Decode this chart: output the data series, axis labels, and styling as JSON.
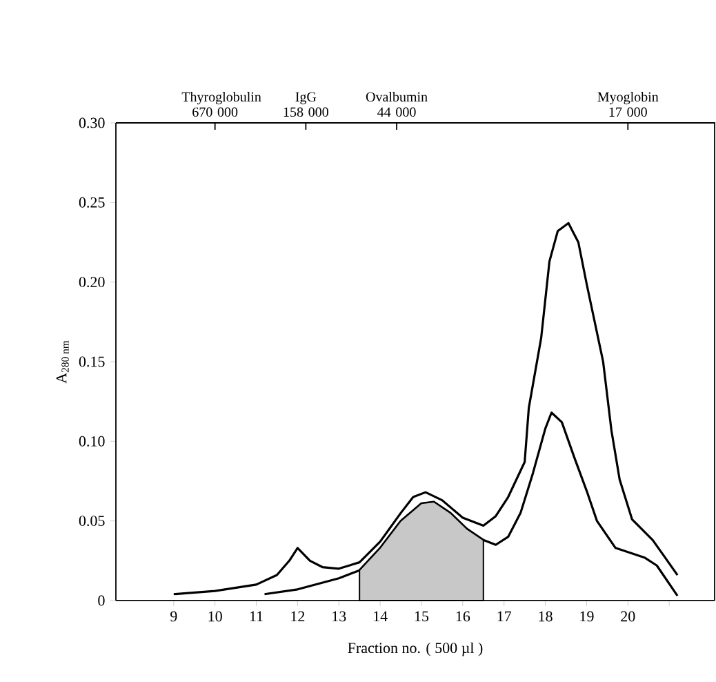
{
  "chart_data": {
    "type": "line",
    "xlabel": "Fraction no. ( 500 µl )",
    "ylabel": "A$_{280 nm}$",
    "xlim": [
      7.6,
      22.1
    ],
    "ylim": [
      0,
      0.3
    ],
    "xticks": [
      9,
      10,
      11,
      12,
      13,
      14,
      15,
      16,
      17,
      18,
      19,
      20,
      {
        "value": 21,
        "label": null
      }
    ],
    "yticks": [
      0,
      0.05,
      {
        "value": 0.1,
        "label": "0.10"
      },
      0.15,
      {
        "value": 0.2,
        "label": "0.20"
      },
      0.25,
      {
        "value": 0.3,
        "label": "0.30"
      }
    ],
    "annotations": [
      {
        "text": "Thyroglobulin 670 000",
        "x": 10
      },
      {
        "text": "IgG 158 000",
        "x": 12.2
      },
      {
        "text": "Ovalbumin 44 000",
        "x": 14.4
      },
      {
        "text": "Myoglobin 17 000",
        "x": 20
      }
    ],
    "grid": false,
    "series": [
      {
        "color": "#000000",
        "x": [
          9,
          10,
          11,
          11.5,
          11.8,
          12.0,
          12.3,
          12.6,
          13.0,
          13.5,
          14.0,
          14.5,
          14.8,
          15.1,
          15.5,
          16.0,
          16.5,
          16.8,
          17.1,
          17.5,
          17.6,
          17.9,
          18.1,
          18.3,
          18.56,
          18.8,
          19.0,
          19.4,
          19.6,
          19.8,
          20.1,
          20.6,
          20.9,
          21.2
        ],
        "values": [
          0.004,
          0.006,
          0.01,
          0.016,
          0.025,
          0.033,
          0.025,
          0.021,
          0.02,
          0.024,
          0.037,
          0.055,
          0.065,
          0.068,
          0.063,
          0.052,
          0.047,
          0.053,
          0.065,
          0.087,
          0.121,
          0.165,
          0.213,
          0.232,
          0.237,
          0.225,
          0.199,
          0.15,
          0.107,
          0.076,
          0.051,
          0.038,
          0.027,
          0.016
        ]
      },
      {
        "color": "#000000",
        "x": [
          11.2,
          12,
          13,
          13.5,
          14.0,
          14.5,
          15.0,
          15.3,
          15.7,
          16.1,
          16.5,
          16.8,
          17.1,
          17.4,
          17.7,
          18.0,
          18.15,
          18.4,
          18.7,
          19.0,
          19.25,
          19.7,
          20.4,
          20.7,
          21.2
        ],
        "values": [
          0.004,
          0.007,
          0.014,
          0.019,
          0.033,
          0.05,
          0.061,
          0.062,
          0.055,
          0.045,
          0.038,
          0.035,
          0.04,
          0.055,
          0.08,
          0.108,
          0.118,
          0.112,
          0.09,
          0.069,
          0.05,
          0.033,
          0.027,
          0.022,
          0.003
        ]
      },
      {
        "type": "area",
        "color": "#c8c8c8",
        "x": [
          13.5,
          14.0,
          14.5,
          15.0,
          15.3,
          15.7,
          16.1,
          16.5
        ],
        "values": [
          0.019,
          0.033,
          0.05,
          0.061,
          0.062,
          0.055,
          0.045,
          0.038
        ]
      }
    ]
  }
}
